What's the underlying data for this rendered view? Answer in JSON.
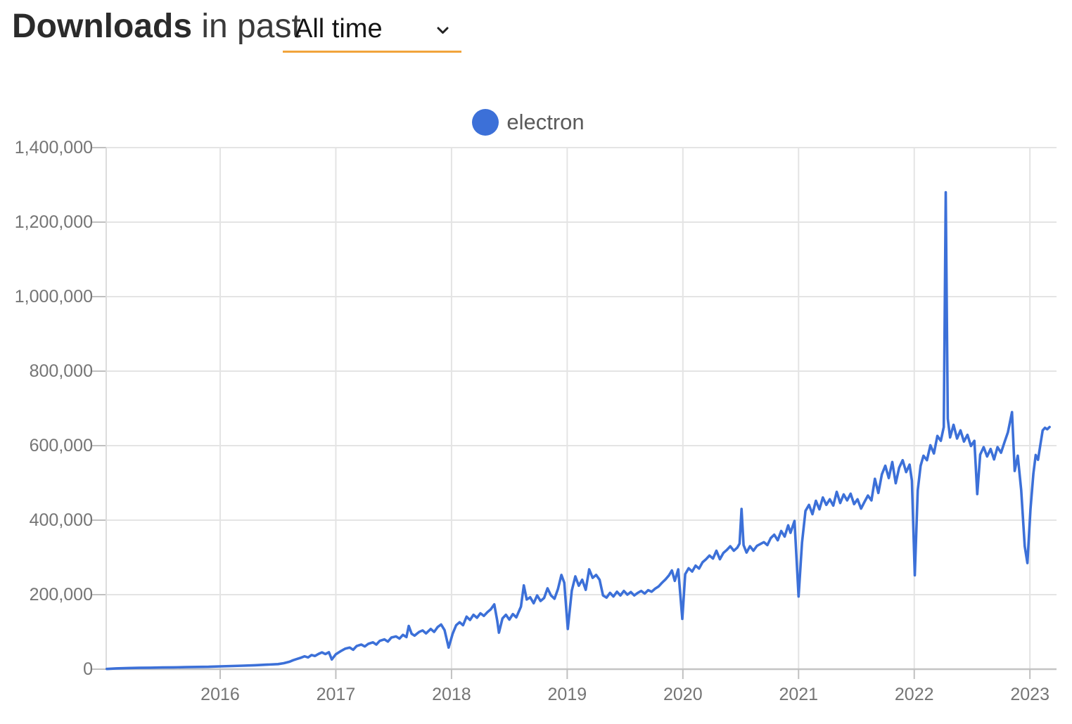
{
  "header": {
    "title_bold": "Downloads",
    "title_rest": "in past",
    "range_selector": {
      "value": "All time"
    }
  },
  "legend": {
    "items": [
      {
        "label": "electron",
        "color": "#3C70D8"
      }
    ]
  },
  "colors": {
    "line": "#3C70D8",
    "grid": "#E4E4E4",
    "axis_zero": "#C4C4C4",
    "axis_left": "#DCDCDC",
    "tick_stub": "#C0C0C0",
    "tick_text": "#757575",
    "underline_accent": "#F1A43C"
  },
  "chart_data": {
    "type": "line",
    "title": "Downloads in past All time",
    "grid": true,
    "legend_position": "top",
    "xlim": [
      2015.015,
      2023.23
    ],
    "ylim": [
      0,
      1400000
    ],
    "x_ticks": [
      2016,
      2017,
      2018,
      2019,
      2020,
      2021,
      2022,
      2023
    ],
    "x_tick_labels": [
      "2016",
      "2017",
      "2018",
      "2019",
      "2020",
      "2021",
      "2022",
      "2023"
    ],
    "y_ticks": [
      0,
      200000,
      400000,
      600000,
      800000,
      1000000,
      1200000,
      1400000
    ],
    "y_tick_labels": [
      "0",
      "200,000",
      "400,000",
      "600,000",
      "800,000",
      "1,000,000",
      "1,200,000",
      "1,400,000"
    ],
    "series": [
      {
        "name": "electron",
        "color": "#3C70D8",
        "points": [
          [
            2015.02,
            500
          ],
          [
            2015.1,
            2000
          ],
          [
            2015.2,
            3000
          ],
          [
            2015.3,
            3500
          ],
          [
            2015.4,
            4000
          ],
          [
            2015.5,
            4500
          ],
          [
            2015.6,
            5000
          ],
          [
            2015.7,
            5500
          ],
          [
            2015.8,
            6000
          ],
          [
            2015.9,
            6500
          ],
          [
            2016.0,
            7500
          ],
          [
            2016.1,
            8500
          ],
          [
            2016.2,
            9500
          ],
          [
            2016.3,
            10500
          ],
          [
            2016.4,
            12000
          ],
          [
            2016.5,
            13500
          ],
          [
            2016.55,
            16000
          ],
          [
            2016.6,
            20000
          ],
          [
            2016.63,
            24000
          ],
          [
            2016.66,
            27000
          ],
          [
            2016.7,
            31000
          ],
          [
            2016.73,
            34500
          ],
          [
            2016.76,
            31500
          ],
          [
            2016.79,
            38000
          ],
          [
            2016.82,
            35500
          ],
          [
            2016.85,
            41000
          ],
          [
            2016.88,
            45000
          ],
          [
            2016.91,
            40500
          ],
          [
            2016.94,
            45500
          ],
          [
            2016.965,
            26000
          ],
          [
            2017.0,
            40000
          ],
          [
            2017.04,
            48000
          ],
          [
            2017.08,
            55000
          ],
          [
            2017.12,
            58000
          ],
          [
            2017.15,
            52000
          ],
          [
            2017.18,
            62000
          ],
          [
            2017.22,
            66000
          ],
          [
            2017.25,
            61000
          ],
          [
            2017.28,
            68000
          ],
          [
            2017.32,
            72000
          ],
          [
            2017.35,
            66000
          ],
          [
            2017.38,
            76000
          ],
          [
            2017.42,
            80000
          ],
          [
            2017.45,
            74000
          ],
          [
            2017.48,
            85000
          ],
          [
            2017.52,
            88000
          ],
          [
            2017.55,
            82000
          ],
          [
            2017.58,
            92000
          ],
          [
            2017.61,
            86000
          ],
          [
            2017.63,
            116000
          ],
          [
            2017.655,
            95000
          ],
          [
            2017.68,
            90000
          ],
          [
            2017.72,
            100000
          ],
          [
            2017.75,
            104000
          ],
          [
            2017.78,
            96000
          ],
          [
            2017.82,
            108000
          ],
          [
            2017.85,
            100000
          ],
          [
            2017.88,
            113000
          ],
          [
            2017.91,
            120000
          ],
          [
            2017.94,
            105000
          ],
          [
            2017.975,
            58000
          ],
          [
            2018.01,
            95000
          ],
          [
            2018.04,
            118000
          ],
          [
            2018.07,
            126000
          ],
          [
            2018.1,
            118000
          ],
          [
            2018.13,
            141000
          ],
          [
            2018.16,
            132000
          ],
          [
            2018.19,
            146000
          ],
          [
            2018.22,
            138000
          ],
          [
            2018.25,
            150000
          ],
          [
            2018.28,
            143000
          ],
          [
            2018.31,
            153000
          ],
          [
            2018.34,
            161000
          ],
          [
            2018.37,
            174000
          ],
          [
            2018.395,
            130000
          ],
          [
            2018.41,
            98000
          ],
          [
            2018.44,
            136000
          ],
          [
            2018.47,
            146000
          ],
          [
            2018.5,
            133000
          ],
          [
            2018.53,
            148000
          ],
          [
            2018.56,
            139000
          ],
          [
            2018.6,
            168000
          ],
          [
            2018.625,
            225000
          ],
          [
            2018.65,
            187000
          ],
          [
            2018.68,
            193000
          ],
          [
            2018.71,
            177000
          ],
          [
            2018.74,
            198000
          ],
          [
            2018.77,
            183000
          ],
          [
            2018.8,
            191000
          ],
          [
            2018.83,
            217000
          ],
          [
            2018.86,
            198000
          ],
          [
            2018.89,
            189000
          ],
          [
            2018.92,
            215000
          ],
          [
            2018.95,
            253000
          ],
          [
            2018.975,
            232000
          ],
          [
            2019.005,
            108000
          ],
          [
            2019.04,
            211000
          ],
          [
            2019.07,
            249000
          ],
          [
            2019.1,
            224000
          ],
          [
            2019.13,
            240000
          ],
          [
            2019.16,
            213000
          ],
          [
            2019.19,
            268000
          ],
          [
            2019.22,
            245000
          ],
          [
            2019.25,
            253000
          ],
          [
            2019.28,
            240000
          ],
          [
            2019.31,
            198000
          ],
          [
            2019.34,
            192000
          ],
          [
            2019.37,
            205000
          ],
          [
            2019.4,
            195000
          ],
          [
            2019.43,
            208000
          ],
          [
            2019.46,
            198000
          ],
          [
            2019.49,
            210000
          ],
          [
            2019.52,
            200000
          ],
          [
            2019.55,
            207000
          ],
          [
            2019.58,
            198000
          ],
          [
            2019.61,
            205000
          ],
          [
            2019.64,
            210000
          ],
          [
            2019.67,
            203000
          ],
          [
            2019.7,
            212000
          ],
          [
            2019.73,
            208000
          ],
          [
            2019.76,
            216000
          ],
          [
            2019.79,
            222000
          ],
          [
            2019.82,
            232000
          ],
          [
            2019.85,
            241000
          ],
          [
            2019.88,
            252000
          ],
          [
            2019.905,
            265000
          ],
          [
            2019.93,
            237000
          ],
          [
            2019.96,
            268000
          ],
          [
            2019.995,
            135000
          ],
          [
            2020.02,
            255000
          ],
          [
            2020.05,
            271000
          ],
          [
            2020.08,
            262000
          ],
          [
            2020.11,
            278000
          ],
          [
            2020.14,
            270000
          ],
          [
            2020.17,
            287000
          ],
          [
            2020.2,
            295000
          ],
          [
            2020.23,
            305000
          ],
          [
            2020.26,
            297000
          ],
          [
            2020.29,
            318000
          ],
          [
            2020.32,
            295000
          ],
          [
            2020.35,
            312000
          ],
          [
            2020.38,
            320000
          ],
          [
            2020.41,
            330000
          ],
          [
            2020.44,
            318000
          ],
          [
            2020.47,
            326000
          ],
          [
            2020.49,
            337000
          ],
          [
            2020.507,
            430000
          ],
          [
            2020.525,
            333000
          ],
          [
            2020.55,
            313000
          ],
          [
            2020.58,
            330000
          ],
          [
            2020.61,
            318000
          ],
          [
            2020.64,
            331000
          ],
          [
            2020.67,
            336000
          ],
          [
            2020.7,
            341000
          ],
          [
            2020.73,
            333000
          ],
          [
            2020.76,
            352000
          ],
          [
            2020.79,
            361000
          ],
          [
            2020.82,
            346000
          ],
          [
            2020.85,
            371000
          ],
          [
            2020.88,
            356000
          ],
          [
            2020.91,
            386000
          ],
          [
            2020.93,
            366000
          ],
          [
            2020.965,
            398000
          ],
          [
            2021.0,
            195000
          ],
          [
            2021.03,
            340000
          ],
          [
            2021.06,
            425000
          ],
          [
            2021.09,
            441000
          ],
          [
            2021.12,
            416000
          ],
          [
            2021.15,
            452000
          ],
          [
            2021.18,
            429000
          ],
          [
            2021.21,
            461000
          ],
          [
            2021.24,
            441000
          ],
          [
            2021.27,
            456000
          ],
          [
            2021.3,
            439000
          ],
          [
            2021.33,
            476000
          ],
          [
            2021.36,
            446000
          ],
          [
            2021.39,
            469000
          ],
          [
            2021.42,
            453000
          ],
          [
            2021.45,
            471000
          ],
          [
            2021.48,
            443000
          ],
          [
            2021.51,
            456000
          ],
          [
            2021.54,
            431000
          ],
          [
            2021.57,
            449000
          ],
          [
            2021.6,
            466000
          ],
          [
            2021.63,
            453000
          ],
          [
            2021.66,
            511000
          ],
          [
            2021.69,
            473000
          ],
          [
            2021.72,
            523000
          ],
          [
            2021.75,
            546000
          ],
          [
            2021.78,
            513000
          ],
          [
            2021.81,
            556000
          ],
          [
            2021.84,
            499000
          ],
          [
            2021.87,
            541000
          ],
          [
            2021.9,
            561000
          ],
          [
            2021.93,
            529000
          ],
          [
            2021.96,
            549000
          ],
          [
            2021.98,
            506000
          ],
          [
            2022.005,
            252000
          ],
          [
            2022.03,
            480000
          ],
          [
            2022.055,
            546000
          ],
          [
            2022.08,
            573000
          ],
          [
            2022.11,
            561000
          ],
          [
            2022.14,
            601000
          ],
          [
            2022.17,
            579000
          ],
          [
            2022.2,
            626000
          ],
          [
            2022.23,
            613000
          ],
          [
            2022.255,
            650000
          ],
          [
            2022.272,
            1280000
          ],
          [
            2022.29,
            672000
          ],
          [
            2022.31,
            622000
          ],
          [
            2022.34,
            656000
          ],
          [
            2022.37,
            619000
          ],
          [
            2022.4,
            641000
          ],
          [
            2022.43,
            611000
          ],
          [
            2022.46,
            629000
          ],
          [
            2022.49,
            599000
          ],
          [
            2022.52,
            613000
          ],
          [
            2022.545,
            470000
          ],
          [
            2022.57,
            576000
          ],
          [
            2022.6,
            596000
          ],
          [
            2022.63,
            571000
          ],
          [
            2022.66,
            591000
          ],
          [
            2022.69,
            563000
          ],
          [
            2022.72,
            596000
          ],
          [
            2022.75,
            581000
          ],
          [
            2022.78,
            609000
          ],
          [
            2022.81,
            636000
          ],
          [
            2022.845,
            690000
          ],
          [
            2022.868,
            532000
          ],
          [
            2022.895,
            573000
          ],
          [
            2022.925,
            480000
          ],
          [
            2022.955,
            330000
          ],
          [
            2022.978,
            285000
          ],
          [
            2023.005,
            430000
          ],
          [
            2023.03,
            525000
          ],
          [
            2023.05,
            575000
          ],
          [
            2023.07,
            562000
          ],
          [
            2023.09,
            602000
          ],
          [
            2023.11,
            641000
          ],
          [
            2023.13,
            648000
          ],
          [
            2023.15,
            644000
          ],
          [
            2023.17,
            650000
          ]
        ]
      }
    ]
  }
}
